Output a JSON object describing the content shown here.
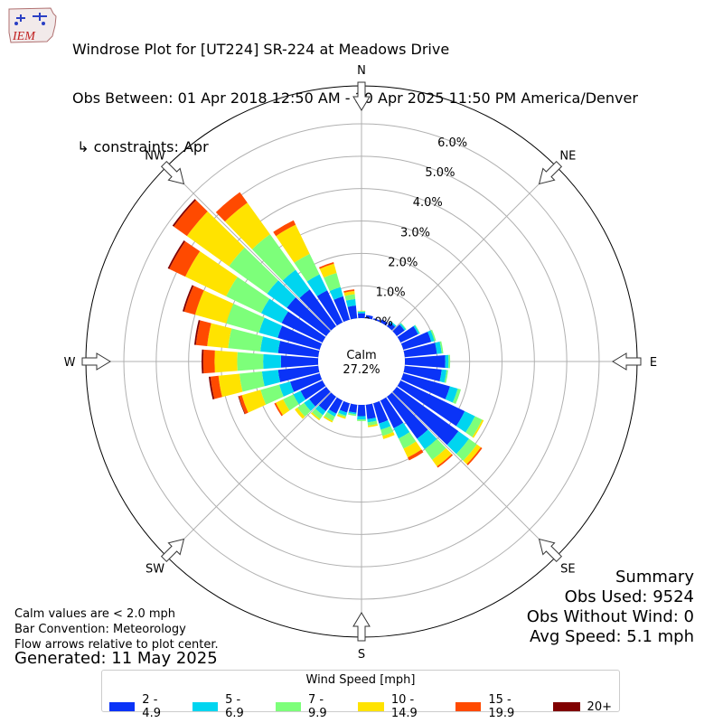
{
  "header": {
    "logo_text": "IEM",
    "title_line1": "Windrose Plot for [UT224] SR-224 at Meadows Drive",
    "title_line2": "Obs Between: 01 Apr 2018 12:50 AM - 30 Apr 2025 11:50 PM America/Denver",
    "title_line3": " ↳ constraints: Apr"
  },
  "notes": {
    "line1": "Calm values are < 2.0 mph",
    "line2": "Bar Convention: Meteorology",
    "line3": "Flow arrows relative to plot center.",
    "generated": "Generated: 11 May 2025"
  },
  "summary": {
    "heading": "Summary",
    "obs_used": "Obs Used: 9524",
    "obs_without_wind": "Obs Without Wind: 0",
    "avg_speed": "Avg Speed: 5.1 mph"
  },
  "legend": {
    "title": "Wind Speed [mph]"
  },
  "chart_data": {
    "type": "windrose",
    "calm_label": "Calm",
    "calm_value": "27.2%",
    "radial_ticks": [
      "0.0%",
      "1.0%",
      "2.0%",
      "3.0%",
      "4.0%",
      "5.0%",
      "6.0%"
    ],
    "radial_tick_values": [
      0,
      1,
      2,
      3,
      4,
      5,
      6
    ],
    "compass_labels": [
      "N",
      "NE",
      "E",
      "SE",
      "S",
      "SW",
      "W",
      "NW"
    ],
    "speed_bins": [
      {
        "label": "2 - 4.9",
        "color": "#0a33f7"
      },
      {
        "label": "5 - 6.9",
        "color": "#00d5f0"
      },
      {
        "label": "7 - 9.9",
        "color": "#7dff7a"
      },
      {
        "label": "10 - 14.9",
        "color": "#ffe300"
      },
      {
        "label": "15 - 19.9",
        "color": "#ff4a00"
      },
      {
        "label": "20+",
        "color": "#800000"
      }
    ],
    "directions_deg": [
      0,
      10,
      20,
      30,
      40,
      50,
      60,
      70,
      80,
      90,
      100,
      110,
      120,
      130,
      140,
      150,
      160,
      170,
      180,
      190,
      200,
      210,
      220,
      230,
      240,
      250,
      260,
      270,
      280,
      290,
      300,
      310,
      320,
      330,
      340,
      350
    ],
    "cumulative_percent": [
      [
        0.15,
        0.2,
        0.22,
        0.23,
        0.23,
        0.23
      ],
      [
        0.1,
        0.1,
        0.1,
        0.1,
        0.1,
        0.1
      ],
      [
        0.05,
        0.05,
        0.05,
        0.05,
        0.05,
        0.05
      ],
      [
        0.1,
        0.1,
        0.1,
        0.1,
        0.1,
        0.1
      ],
      [
        0.15,
        0.2,
        0.2,
        0.2,
        0.2,
        0.2
      ],
      [
        0.3,
        0.35,
        0.37,
        0.37,
        0.37,
        0.37
      ],
      [
        0.6,
        0.65,
        0.67,
        0.67,
        0.67,
        0.67
      ],
      [
        0.9,
        1.0,
        1.05,
        1.05,
        1.05,
        1.05
      ],
      [
        1.0,
        1.15,
        1.2,
        1.2,
        1.2,
        1.2
      ],
      [
        1.25,
        1.35,
        1.4,
        1.4,
        1.4,
        1.4
      ],
      [
        1.15,
        1.3,
        1.35,
        1.35,
        1.35,
        1.35
      ],
      [
        1.5,
        1.75,
        1.85,
        1.85,
        1.85,
        1.85
      ],
      [
        2.2,
        2.55,
        2.8,
        2.85,
        2.85,
        2.85
      ],
      [
        2.35,
        2.75,
        3.05,
        3.2,
        3.25,
        3.25
      ],
      [
        1.6,
        2.0,
        2.4,
        2.65,
        2.7,
        2.7
      ],
      [
        0.95,
        1.3,
        1.65,
        1.95,
        2.05,
        2.05
      ],
      [
        0.65,
        0.85,
        1.05,
        1.15,
        1.15,
        1.15
      ],
      [
        0.45,
        0.55,
        0.65,
        0.7,
        0.7,
        0.7
      ],
      [
        0.35,
        0.45,
        0.5,
        0.5,
        0.5,
        0.5
      ],
      [
        0.25,
        0.3,
        0.35,
        0.35,
        0.35,
        0.35
      ],
      [
        0.3,
        0.4,
        0.45,
        0.5,
        0.5,
        0.5
      ],
      [
        0.45,
        0.55,
        0.7,
        0.75,
        0.75,
        0.75
      ],
      [
        0.55,
        0.7,
        0.85,
        0.9,
        0.9,
        0.9
      ],
      [
        0.65,
        0.85,
        1.1,
        1.2,
        1.2,
        1.2
      ],
      [
        0.75,
        1.0,
        1.35,
        1.6,
        1.65,
        1.65
      ],
      [
        0.95,
        1.3,
        1.9,
        2.5,
        2.6,
        2.62
      ],
      [
        1.25,
        1.75,
        2.45,
        3.1,
        3.35,
        3.4
      ],
      [
        1.15,
        1.7,
        2.5,
        3.2,
        3.55,
        3.6
      ],
      [
        1.25,
        1.8,
        2.8,
        3.45,
        3.8,
        3.85
      ],
      [
        1.35,
        1.95,
        3.0,
        4.0,
        4.35,
        4.4
      ],
      [
        1.4,
        2.1,
        3.3,
        4.7,
        5.25,
        5.3
      ],
      [
        1.5,
        2.25,
        3.7,
        5.3,
        5.8,
        5.85
      ],
      [
        1.4,
        2.15,
        3.5,
        4.7,
        5.1,
        5.1
      ],
      [
        1.1,
        1.65,
        2.35,
        3.35,
        3.5,
        3.5
      ],
      [
        0.75,
        1.05,
        1.5,
        1.8,
        1.85,
        1.85
      ],
      [
        0.4,
        0.6,
        0.75,
        0.85,
        0.9,
        0.9
      ]
    ]
  }
}
